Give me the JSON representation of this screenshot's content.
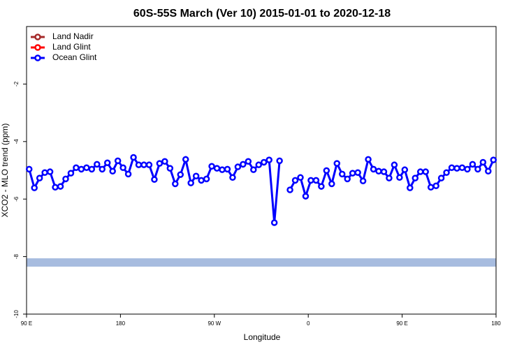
{
  "chart_data": {
    "type": "line",
    "title": "60S-55S March (Ver 10)   2015-01-01 to 2020-12-18",
    "x_label": "Longitude",
    "y_label": "XCO2 - MLO trend (ppm)",
    "xlim": [
      90,
      540
    ],
    "xticks": [
      {
        "value": 90,
        "label": "90 E"
      },
      180,
      {
        "value": 270,
        "label": "90 W"
      },
      {
        "value": 360,
        "label": "0"
      },
      {
        "value": 450,
        "label": "90 E"
      },
      {
        "value": 540,
        "label": "180"
      }
    ],
    "ylim": [
      -10,
      0
    ],
    "yticks": [
      -10,
      -8,
      -6,
      -4,
      -2
    ],
    "legend": "top-left",
    "band": {
      "range": [
        -8.35,
        -8.06
      ],
      "color": "#a7bcdf"
    },
    "x": [
      92.5,
      97.5,
      102.5,
      107.5,
      112.5,
      117.5,
      122.5,
      127.5,
      132.5,
      137.5,
      142.5,
      147.5,
      152.5,
      157.5,
      162.5,
      167.5,
      172.5,
      177.5,
      182.5,
      187.5,
      192.5,
      197.5,
      202.5,
      207.5,
      212.5,
      217.5,
      222.5,
      227.5,
      232.5,
      237.5,
      242.5,
      247.5,
      252.5,
      257.5,
      262.5,
      267.5,
      272.5,
      277.5,
      282.5,
      287.5,
      292.5,
      297.5,
      302.5,
      307.5,
      312.5,
      317.5,
      322.5,
      327.5,
      332.5,
      337.5,
      342.5,
      347.5,
      352.5,
      357.5,
      362.5,
      367.5,
      372.5,
      377.5,
      382.5,
      387.5,
      392.5,
      397.5,
      402.5,
      407.5,
      412.5,
      417.5,
      422.5,
      427.5,
      432.5,
      437.5,
      442.5,
      447.5,
      452.5,
      457.5,
      462.5,
      467.5,
      472.5,
      477.5,
      482.5,
      487.5,
      492.5,
      497.5,
      502.5,
      507.5,
      512.5,
      517.5,
      522.5,
      527.5,
      532.5,
      537.5
    ],
    "series": [
      {
        "name": "Land Nadir",
        "color": "#a52a2a",
        "values": [
          null,
          null,
          null,
          null,
          null,
          null,
          null,
          null,
          null,
          null,
          null,
          null,
          null,
          null,
          null,
          null,
          null,
          null,
          null,
          null,
          null,
          null,
          null,
          null,
          null,
          null,
          null,
          null,
          null,
          null,
          null,
          null,
          null,
          null,
          null,
          null,
          null,
          null,
          null,
          null,
          null,
          null,
          null,
          null,
          null,
          null,
          null,
          null,
          null,
          null,
          null,
          null,
          null,
          null,
          null,
          null,
          null,
          null,
          null,
          null,
          null,
          null,
          null,
          null,
          null,
          null,
          null,
          null,
          null,
          null,
          null,
          null,
          null,
          null,
          null,
          null,
          null,
          null,
          null,
          null,
          null,
          null,
          null,
          null,
          null,
          null,
          null,
          null,
          null,
          null
        ]
      },
      {
        "name": "Land Glint",
        "color": "#ff0000",
        "values": [
          null,
          null,
          null,
          null,
          null,
          null,
          null,
          null,
          null,
          null,
          null,
          null,
          null,
          null,
          null,
          null,
          null,
          null,
          null,
          null,
          null,
          null,
          null,
          null,
          null,
          null,
          null,
          null,
          null,
          null,
          null,
          null,
          null,
          null,
          null,
          null,
          null,
          null,
          null,
          null,
          null,
          null,
          null,
          null,
          null,
          null,
          null,
          null,
          null,
          null,
          null,
          null,
          null,
          null,
          null,
          null,
          null,
          null,
          null,
          null,
          null,
          null,
          null,
          null,
          null,
          null,
          null,
          null,
          null,
          null,
          null,
          null,
          null,
          null,
          null,
          null,
          null,
          null,
          null,
          null,
          null,
          null,
          null,
          null,
          null,
          null,
          null,
          null,
          null,
          null
        ]
      },
      {
        "name": "Ocean Glint",
        "color": "#0000ff",
        "values": [
          -4.96,
          -5.61,
          -5.27,
          -5.08,
          -5.05,
          -5.59,
          -5.56,
          -5.3,
          -5.1,
          -4.91,
          -4.96,
          -4.91,
          -4.96,
          -4.79,
          -4.96,
          -4.74,
          -5.03,
          -4.67,
          -4.91,
          -5.13,
          -4.55,
          -4.81,
          -4.81,
          -4.81,
          -5.32,
          -4.76,
          -4.69,
          -4.93,
          -5.47,
          -5.15,
          -4.62,
          -5.44,
          -5.2,
          -5.35,
          -5.3,
          -4.86,
          -4.93,
          -4.98,
          -4.96,
          -5.25,
          -4.88,
          -4.79,
          -4.69,
          -4.98,
          -4.81,
          -4.72,
          -4.64,
          -6.82,
          -4.67,
          null,
          -5.68,
          -5.35,
          -5.25,
          -5.9,
          -5.35,
          -5.35,
          -5.56,
          -5.01,
          -5.47,
          -4.76,
          -5.13,
          -5.3,
          -5.1,
          -5.08,
          -5.37,
          -4.62,
          -4.96,
          -5.03,
          -5.05,
          -5.27,
          -4.81,
          -5.25,
          -4.98,
          -5.61,
          -5.27,
          -5.05,
          -5.05,
          -5.59,
          -5.54,
          -5.27,
          -5.08,
          -4.91,
          -4.93,
          -4.91,
          -4.96,
          -4.79,
          -4.96,
          -4.72,
          -5.03,
          -4.64
        ]
      }
    ]
  }
}
